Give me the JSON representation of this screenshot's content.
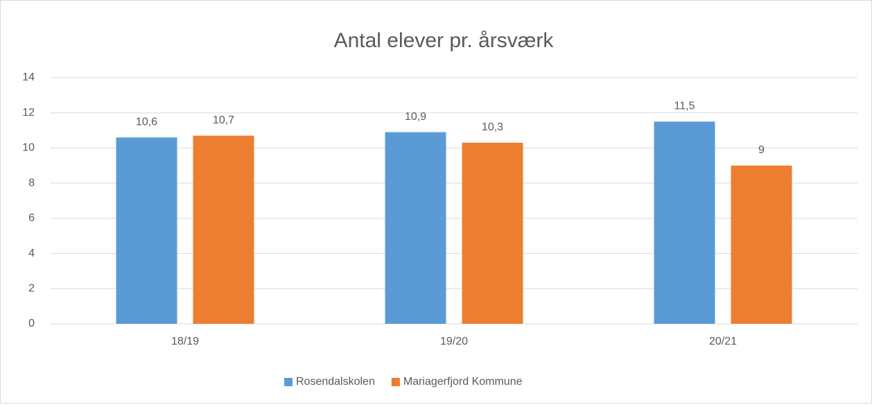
{
  "chart_data": {
    "type": "bar",
    "title": "Antal elever pr. årsværk",
    "categories": [
      "18/19",
      "19/20",
      "20/21"
    ],
    "series": [
      {
        "name": "Rosendalskolen",
        "color": "#5b9bd5",
        "values": [
          10.6,
          10.9,
          11.5
        ],
        "value_labels": [
          "10,6",
          "10,9",
          "11,5"
        ]
      },
      {
        "name": "Mariagerfjord Kommune",
        "color": "#ed7d31",
        "values": [
          10.7,
          10.3,
          9
        ],
        "value_labels": [
          "10,7",
          "10,3",
          "9"
        ]
      }
    ],
    "ylim": [
      0,
      14
    ],
    "yticks": [
      0,
      2,
      4,
      6,
      8,
      10,
      12,
      14
    ],
    "grid": true,
    "legend": "bottom"
  }
}
